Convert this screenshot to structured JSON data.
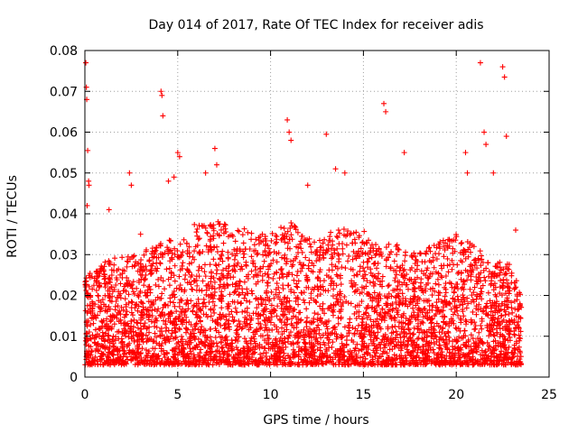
{
  "chart_data": {
    "type": "scatter",
    "title": "Day 014 of 2017, Rate Of TEC Index for receiver adis",
    "xlabel": "GPS time / hours",
    "ylabel": "ROTI / TECUs",
    "xlim": [
      0,
      25
    ],
    "ylim": [
      0,
      0.08
    ],
    "xticks": [
      0,
      5,
      10,
      15,
      20,
      25
    ],
    "xtick_labels": [
      "0",
      "5",
      "10",
      "15",
      "20",
      "25"
    ],
    "yticks": [
      0,
      0.01,
      0.02,
      0.03,
      0.04,
      0.05,
      0.06,
      0.07,
      0.08
    ],
    "ytick_labels": [
      "0",
      "0.01",
      "0.02",
      "0.03",
      "0.04",
      "0.05",
      "0.06",
      "0.07",
      "0.08"
    ],
    "grid": true,
    "marker": "+",
    "color": "#ff0000",
    "series": [
      {
        "name": "ROTI",
        "x": [
          0.05,
          0.08,
          0.1,
          0.12,
          0.15,
          0.2,
          0.22,
          0.3,
          1.3,
          2.4,
          2.5,
          3.0,
          4.1,
          4.15,
          4.2,
          4.5,
          4.8,
          5.0,
          5.1,
          6.5,
          7.0,
          7.1,
          10.9,
          11.0,
          11.1,
          12.0,
          13.0,
          13.5,
          14.0,
          16.1,
          16.2,
          17.2,
          20.5,
          20.6,
          21.3,
          21.5,
          21.6,
          22.0,
          22.5,
          22.6,
          22.7,
          23.2
        ],
        "y": [
          0.077,
          0.071,
          0.068,
          0.042,
          0.0555,
          0.048,
          0.047,
          0.02,
          0.041,
          0.05,
          0.047,
          0.035,
          0.07,
          0.069,
          0.064,
          0.048,
          0.049,
          0.055,
          0.054,
          0.05,
          0.056,
          0.052,
          0.063,
          0.06,
          0.058,
          0.047,
          0.0595,
          0.051,
          0.05,
          0.067,
          0.065,
          0.055,
          0.055,
          0.05,
          0.077,
          0.06,
          0.057,
          0.05,
          0.076,
          0.0735,
          0.059,
          0.036
        ]
      }
    ],
    "dense_band": {
      "note": "dense cloud of '+' markers between 0 and 23.5 hours",
      "x_range": [
        0,
        23.5
      ],
      "y_min": 0.003,
      "y_max_profile": {
        "x": [
          0,
          1,
          2,
          3,
          4,
          5,
          6,
          7,
          8,
          9,
          10,
          11,
          12,
          13,
          14,
          15,
          16,
          17,
          18,
          19,
          20,
          21,
          22,
          23,
          23.5
        ],
        "y": [
          0.025,
          0.028,
          0.03,
          0.031,
          0.033,
          0.034,
          0.038,
          0.039,
          0.037,
          0.036,
          0.035,
          0.039,
          0.034,
          0.035,
          0.038,
          0.036,
          0.034,
          0.032,
          0.031,
          0.033,
          0.035,
          0.032,
          0.029,
          0.028,
          0.02
        ]
      }
    }
  }
}
